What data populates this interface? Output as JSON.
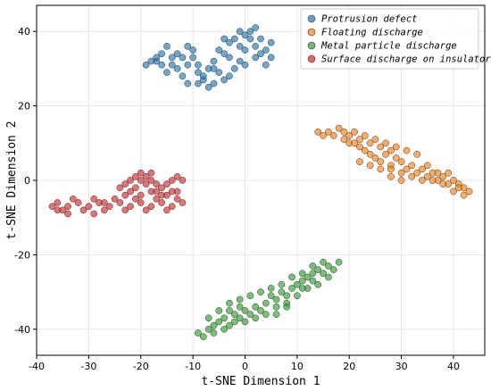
{
  "chart_data": {
    "type": "scatter",
    "title": "",
    "xlabel": "t-SNE Dimension 1",
    "ylabel": "t-SNE Dimension 2",
    "xlim": [
      -40,
      46
    ],
    "ylim": [
      -47,
      47
    ],
    "xticks": [
      -40,
      -30,
      -20,
      -10,
      0,
      10,
      20,
      30,
      40
    ],
    "yticks": [
      -40,
      -20,
      0,
      20,
      40
    ],
    "grid": true,
    "legend_position": "top-right",
    "series": [
      {
        "name": "Protrusion defect",
        "color": "#1f77b4",
        "points": [
          [
            -17,
            32
          ],
          [
            -16,
            34
          ],
          [
            -15,
            36
          ],
          [
            -14,
            33
          ],
          [
            -13,
            30
          ],
          [
            -12,
            28
          ],
          [
            -11,
            31
          ],
          [
            -10,
            33
          ],
          [
            -9,
            29
          ],
          [
            -8,
            27
          ],
          [
            -7,
            30
          ],
          [
            -6,
            32
          ],
          [
            -5,
            35
          ],
          [
            -4,
            34
          ],
          [
            -3,
            37
          ],
          [
            -2,
            38
          ],
          [
            -1,
            36
          ],
          [
            0,
            39
          ],
          [
            1,
            40
          ],
          [
            2,
            41
          ],
          [
            3,
            38
          ],
          [
            4,
            35
          ],
          [
            5,
            33
          ],
          [
            4,
            31
          ],
          [
            3,
            34
          ],
          [
            2,
            36
          ],
          [
            1,
            38
          ],
          [
            0,
            35
          ],
          [
            -1,
            32
          ],
          [
            -2,
            30
          ],
          [
            -3,
            28
          ],
          [
            -4,
            27
          ],
          [
            -5,
            29
          ],
          [
            -6,
            26
          ],
          [
            -7,
            25
          ],
          [
            -8,
            28
          ],
          [
            -9,
            31
          ],
          [
            -10,
            35
          ],
          [
            -11,
            36
          ],
          [
            -12,
            33
          ],
          [
            -13,
            34
          ],
          [
            -14,
            31
          ],
          [
            -15,
            29
          ],
          [
            -16,
            31
          ],
          [
            -18,
            32
          ],
          [
            -19,
            31
          ],
          [
            -17,
            33
          ],
          [
            -11,
            26
          ],
          [
            -9,
            26
          ],
          [
            -6,
            30
          ],
          [
            -3,
            33
          ],
          [
            0,
            31
          ],
          [
            2,
            33
          ],
          [
            -4,
            38
          ],
          [
            -1,
            40
          ],
          [
            5,
            37
          ]
        ]
      },
      {
        "name": "Floating discharge",
        "color": "#ff7f0e",
        "points": [
          [
            14,
            13
          ],
          [
            15,
            12
          ],
          [
            16,
            13
          ],
          [
            17,
            12
          ],
          [
            18,
            14
          ],
          [
            19,
            13
          ],
          [
            20,
            12
          ],
          [
            21,
            13
          ],
          [
            22,
            11
          ],
          [
            23,
            12
          ],
          [
            24,
            10
          ],
          [
            25,
            11
          ],
          [
            26,
            9
          ],
          [
            27,
            10
          ],
          [
            28,
            8
          ],
          [
            29,
            9
          ],
          [
            20,
            10
          ],
          [
            22,
            9
          ],
          [
            24,
            7
          ],
          [
            26,
            5
          ],
          [
            28,
            4
          ],
          [
            30,
            5
          ],
          [
            31,
            3
          ],
          [
            32,
            4
          ],
          [
            33,
            2
          ],
          [
            34,
            3
          ],
          [
            35,
            1
          ],
          [
            36,
            2
          ],
          [
            37,
            0
          ],
          [
            38,
            1
          ],
          [
            39,
            -1
          ],
          [
            40,
            0
          ],
          [
            41,
            -1
          ],
          [
            42,
            -2
          ],
          [
            43,
            -3
          ],
          [
            42,
            -4
          ],
          [
            41,
            -2
          ],
          [
            40,
            -3
          ],
          [
            38,
            -1
          ],
          [
            36,
            0
          ],
          [
            34,
            0
          ],
          [
            32,
            1
          ],
          [
            30,
            2
          ],
          [
            28,
            3
          ],
          [
            26,
            3
          ],
          [
            24,
            4
          ],
          [
            22,
            5
          ],
          [
            25,
            6
          ],
          [
            27,
            7
          ],
          [
            29,
            6
          ],
          [
            31,
            8
          ],
          [
            33,
            7
          ],
          [
            30,
            0
          ],
          [
            28,
            1
          ],
          [
            35,
            4
          ],
          [
            23,
            8
          ],
          [
            19,
            11
          ],
          [
            21,
            10
          ],
          [
            37,
            2
          ],
          [
            39,
            2
          ]
        ]
      },
      {
        "name": "Metal particle discharge",
        "color": "#2ca02c",
        "points": [
          [
            -9,
            -41
          ],
          [
            -8,
            -42
          ],
          [
            -7,
            -40
          ],
          [
            -6,
            -39
          ],
          [
            -5,
            -38
          ],
          [
            -4,
            -37
          ],
          [
            -3,
            -39
          ],
          [
            -2,
            -36
          ],
          [
            -1,
            -37
          ],
          [
            0,
            -35
          ],
          [
            1,
            -36
          ],
          [
            2,
            -34
          ],
          [
            3,
            -35
          ],
          [
            4,
            -33
          ],
          [
            5,
            -31
          ],
          [
            6,
            -32
          ],
          [
            7,
            -30
          ],
          [
            8,
            -31
          ],
          [
            9,
            -29
          ],
          [
            10,
            -28
          ],
          [
            11,
            -27
          ],
          [
            12,
            -26
          ],
          [
            13,
            -25
          ],
          [
            14,
            -24
          ],
          [
            15,
            -25
          ],
          [
            16,
            -23
          ],
          [
            17,
            -24
          ],
          [
            18,
            -22
          ],
          [
            -6,
            -41
          ],
          [
            -4,
            -40
          ],
          [
            -2,
            -38
          ],
          [
            0,
            -38
          ],
          [
            2,
            -37
          ],
          [
            4,
            -36
          ],
          [
            6,
            -34
          ],
          [
            8,
            -33
          ],
          [
            10,
            -31
          ],
          [
            12,
            -29
          ],
          [
            14,
            -28
          ],
          [
            16,
            -26
          ],
          [
            -3,
            -33
          ],
          [
            -1,
            -32
          ],
          [
            1,
            -31
          ],
          [
            3,
            -30
          ],
          [
            5,
            -29
          ],
          [
            7,
            -28
          ],
          [
            9,
            -26
          ],
          [
            11,
            -25
          ],
          [
            13,
            -23
          ],
          [
            15,
            -22
          ],
          [
            -7,
            -37
          ],
          [
            -5,
            -35
          ],
          [
            -3,
            -35
          ],
          [
            -1,
            -34
          ],
          [
            6,
            -36
          ],
          [
            8,
            -34
          ],
          [
            11,
            -29
          ],
          [
            13,
            -27
          ]
        ]
      },
      {
        "name": "Surface discharge on insulator",
        "color": "#d62728",
        "points": [
          [
            -37,
            -7
          ],
          [
            -36,
            -6
          ],
          [
            -35,
            -8
          ],
          [
            -34,
            -7
          ],
          [
            -33,
            -5
          ],
          [
            -32,
            -6
          ],
          [
            -31,
            -8
          ],
          [
            -30,
            -7
          ],
          [
            -29,
            -5
          ],
          [
            -28,
            -6
          ],
          [
            -27,
            -8
          ],
          [
            -26,
            -7
          ],
          [
            -25,
            -5
          ],
          [
            -24,
            -6
          ],
          [
            -23,
            -8
          ],
          [
            -22,
            -7
          ],
          [
            -21,
            -5
          ],
          [
            -20,
            -6
          ],
          [
            -19,
            -8
          ],
          [
            -18,
            -7
          ],
          [
            -17,
            -5
          ],
          [
            -16,
            -6
          ],
          [
            -15,
            -8
          ],
          [
            -14,
            -7
          ],
          [
            -13,
            -5
          ],
          [
            -12,
            -6
          ],
          [
            -24,
            -2
          ],
          [
            -23,
            -1
          ],
          [
            -22,
            0
          ],
          [
            -21,
            1
          ],
          [
            -20,
            2
          ],
          [
            -19,
            1
          ],
          [
            -18,
            0
          ],
          [
            -17,
            -1
          ],
          [
            -16,
            -2
          ],
          [
            -15,
            -1
          ],
          [
            -14,
            0
          ],
          [
            -13,
            1
          ],
          [
            -12,
            0
          ],
          [
            -22,
            -3
          ],
          [
            -20,
            -4
          ],
          [
            -18,
            -3
          ],
          [
            -16,
            -4
          ],
          [
            -14,
            -3
          ],
          [
            -21,
            -2
          ],
          [
            -19,
            -1
          ],
          [
            -17,
            -3
          ],
          [
            -15,
            -4
          ],
          [
            -23,
            -4
          ],
          [
            -13,
            -3
          ],
          [
            -36,
            -8
          ],
          [
            -34,
            -9
          ],
          [
            -29,
            -9
          ],
          [
            -27,
            -6
          ],
          [
            -20,
            0
          ],
          [
            -18,
            2
          ]
        ]
      }
    ]
  }
}
